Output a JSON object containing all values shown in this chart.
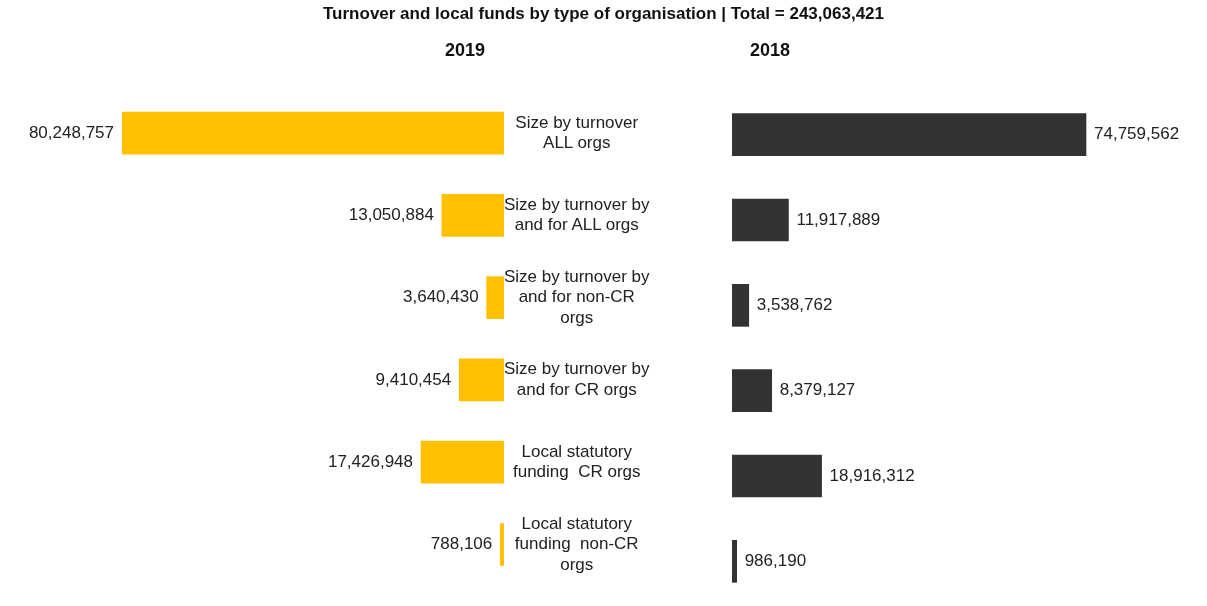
{
  "chart_data": [
    {
      "type": "bar",
      "orientation": "horizontal",
      "title": "Turnover and local funds by type of organisation | Total = 243,063,421",
      "categories": [
        "Size by turnover ALL orgs",
        "Size by turnover by and for ALL orgs",
        "Size by turnover by and for non-CR orgs",
        "Size by turnover by and for CR orgs",
        "Local statutory funding  CR orgs",
        "Local statutory funding  non-CR orgs"
      ],
      "series": [
        {
          "name": "2019",
          "color": "#ffc000",
          "values": [
            80248757,
            13050884,
            3640430,
            9410454,
            17426948,
            788106
          ],
          "value_labels": [
            "80,248,757",
            "13,050,884",
            "3,640,430",
            "9,410,454",
            "17,426,948",
            "788,106"
          ]
        }
      ],
      "tick_labels": "y",
      "grid": false,
      "legend": false
    },
    {
      "type": "bar",
      "orientation": "horizontal",
      "categories": [
        null,
        null,
        null,
        null,
        null,
        null
      ],
      "series": [
        {
          "name": "2018",
          "color": "#333333",
          "values": [
            74759562,
            11917889,
            3538762,
            8379127,
            18916312,
            986190
          ],
          "value_labels": [
            "74,759,562",
            "11,917,889",
            "3,538,762",
            "8,379,127",
            "18,916,312",
            "986,190"
          ]
        }
      ],
      "tick_labels": false,
      "grid": false,
      "legend": false
    }
  ]
}
